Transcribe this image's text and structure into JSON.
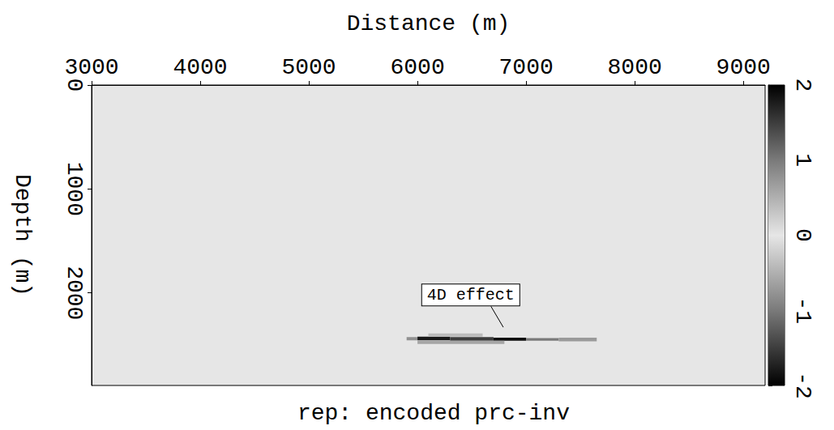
{
  "chart_data": {
    "type": "heatmap",
    "title": "rep: encoded prc-inv",
    "x_label": "Distance (m)",
    "y_label": "Depth (m)",
    "xlim": [
      3000,
      9200
    ],
    "xticks": [
      3000,
      4000,
      5000,
      6000,
      7000,
      8000,
      9000
    ],
    "ylim": [
      0,
      2890
    ],
    "yticks": [
      0,
      1000,
      2000
    ],
    "cells": [
      [
        5900,
        6000,
        2425,
        2455,
        0.8
      ],
      [
        6000,
        6300,
        2420,
        2455,
        1.8
      ],
      [
        6300,
        6700,
        2425,
        2460,
        1.5
      ],
      [
        6700,
        7000,
        2430,
        2460,
        1.9
      ],
      [
        7000,
        7300,
        2435,
        2460,
        1.0
      ],
      [
        7300,
        7650,
        2430,
        2465,
        0.7
      ],
      [
        6000,
        6800,
        2460,
        2490,
        -0.6
      ],
      [
        6100,
        6600,
        2390,
        2420,
        0.4
      ]
    ],
    "colorbar_range": [
      -2,
      2
    ],
    "colorbar_ticks": [
      -2,
      -1,
      0,
      1,
      2
    ],
    "annotations": [
      {
        "text": "4D effect",
        "x": 6490,
        "y": 2020,
        "arrow_x": 6790,
        "arrow_y": 2330
      }
    ]
  }
}
